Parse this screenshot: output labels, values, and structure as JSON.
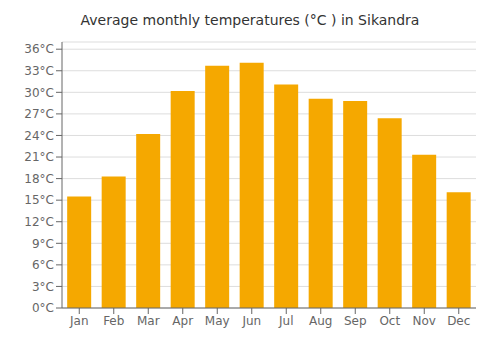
{
  "chart_data": {
    "type": "bar",
    "title": "Average monthly temperatures (°C ) in Sikandra",
    "categories": [
      "Jan",
      "Feb",
      "Mar",
      "Apr",
      "May",
      "Jun",
      "Jul",
      "Aug",
      "Sep",
      "Oct",
      "Nov",
      "Dec"
    ],
    "values": [
      15.5,
      18.3,
      24.2,
      30.2,
      33.7,
      34.1,
      31.1,
      29.1,
      28.8,
      26.4,
      21.3,
      16.1
    ],
    "color": "#F5A800",
    "ylim": [
      0,
      37
    ],
    "yticks": [
      {
        "value": 0,
        "label": "0°C"
      },
      {
        "value": 3,
        "label": "3°C"
      },
      {
        "value": 6,
        "label": "6°C"
      },
      {
        "value": 9,
        "label": "9°C"
      },
      {
        "value": 12,
        "label": "12°C"
      },
      {
        "value": 15,
        "label": "15°C"
      },
      {
        "value": 18,
        "label": "18°C"
      },
      {
        "value": 21,
        "label": "21°C"
      },
      {
        "value": 24,
        "label": "24°C"
      },
      {
        "value": 27,
        "label": "27°C"
      },
      {
        "value": 30,
        "label": "30°C"
      },
      {
        "value": 33,
        "label": "33°C"
      },
      {
        "value": 36,
        "label": "36°C"
      }
    ],
    "grid": true
  }
}
